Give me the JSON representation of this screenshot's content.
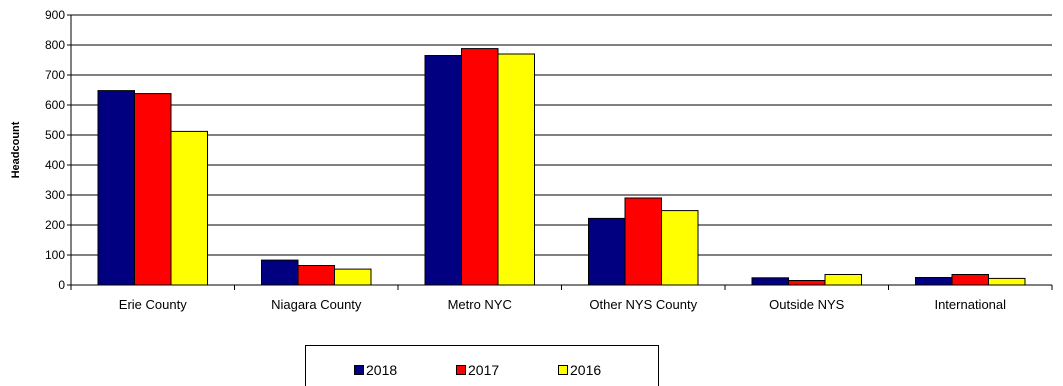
{
  "chart_data": {
    "type": "bar",
    "title": "",
    "xlabel": "",
    "ylabel": "Headcount",
    "ylim": [
      0,
      900
    ],
    "yticks": [
      0,
      100,
      200,
      300,
      400,
      500,
      600,
      700,
      800,
      900
    ],
    "grid": true,
    "legend_position": "bottom",
    "categories": [
      "Erie County",
      "Niagara County",
      "Metro NYC",
      "Other NYS County",
      "Outside NYS",
      "International"
    ],
    "series": [
      {
        "name": "2018",
        "color": "#000080",
        "values": [
          648,
          83,
          765,
          222,
          24,
          25
        ]
      },
      {
        "name": "2017",
        "color": "#ff0000",
        "values": [
          638,
          65,
          788,
          290,
          15,
          35
        ]
      },
      {
        "name": "2016",
        "color": "#ffff00",
        "values": [
          512,
          53,
          770,
          248,
          35,
          22
        ]
      }
    ]
  }
}
